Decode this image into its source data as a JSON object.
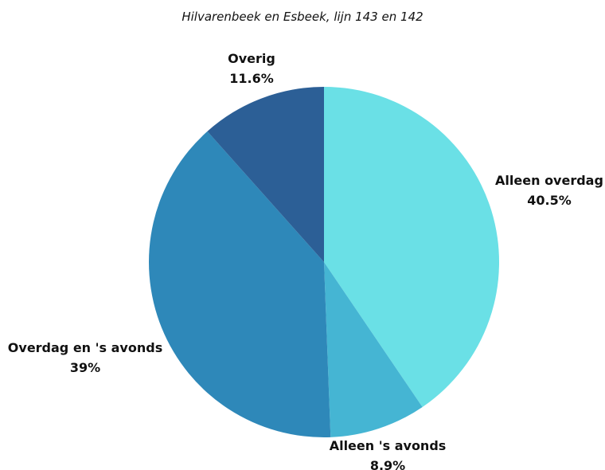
{
  "chart_data": {
    "type": "pie",
    "title": "Hilvarenbeek en Esbeek, lijn 143 en 142",
    "slices": [
      {
        "label": "Alleen overdag",
        "value": 40.5,
        "value_text": "40.5%",
        "color": "#6ae0e6"
      },
      {
        "label": "Alleen 's avonds",
        "value": 8.9,
        "value_text": "8.9%",
        "color": "#45b5d3"
      },
      {
        "label": "Overdag en 's avonds",
        "value": 39,
        "value_text": "39%",
        "color": "#2e88b9"
      },
      {
        "label": "Overig",
        "value": 11.6,
        "value_text": "11.6%",
        "color": "#2c5f96"
      }
    ]
  }
}
